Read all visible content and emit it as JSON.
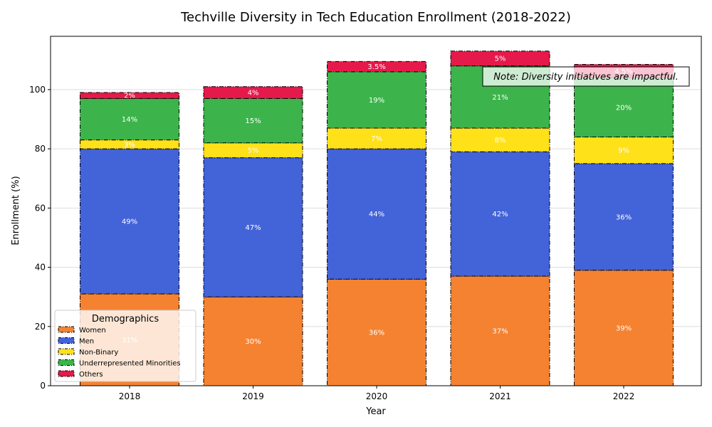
{
  "chart_data": {
    "type": "bar",
    "stacked": true,
    "title": "Techville Diversity in Tech Education Enrollment (2018-2022)",
    "xlabel": "Year",
    "ylabel": "Enrollment (%)",
    "categories": [
      "2018",
      "2019",
      "2020",
      "2021",
      "2022"
    ],
    "ylim": [
      0,
      118
    ],
    "yticks": [
      0,
      20,
      40,
      60,
      80,
      100
    ],
    "grid": "horizontal",
    "legend": {
      "title": "Demographics",
      "placement": "lower-left"
    },
    "series": [
      {
        "name": "Women",
        "color": "#f58231",
        "values": [
          31,
          30,
          36,
          37,
          39
        ],
        "labels": [
          "31%",
          "30%",
          "36%",
          "37%",
          "39%"
        ]
      },
      {
        "name": "Men",
        "color": "#4363d8",
        "values": [
          49,
          47,
          44,
          42,
          36
        ],
        "labels": [
          "49%",
          "47%",
          "44%",
          "42%",
          "36%"
        ]
      },
      {
        "name": "Non-Binary",
        "color": "#ffe119",
        "values": [
          3,
          5,
          7,
          8,
          9
        ],
        "labels": [
          "3%",
          "5%",
          "7%",
          "8%",
          "9%"
        ]
      },
      {
        "name": "Underrepresented Minorities",
        "color": "#3cb44b",
        "values": [
          14,
          15,
          19,
          21,
          20
        ],
        "labels": [
          "14%",
          "15%",
          "19%",
          "21%",
          "20%"
        ]
      },
      {
        "name": "Others",
        "color": "#e6194b",
        "values": [
          2,
          4,
          3.5,
          5,
          4.5
        ],
        "labels": [
          "2%",
          "4%",
          "3.5%",
          "5%",
          "4.5%"
        ]
      }
    ],
    "annotation": "Note: Diversity initiatives are impactful."
  }
}
